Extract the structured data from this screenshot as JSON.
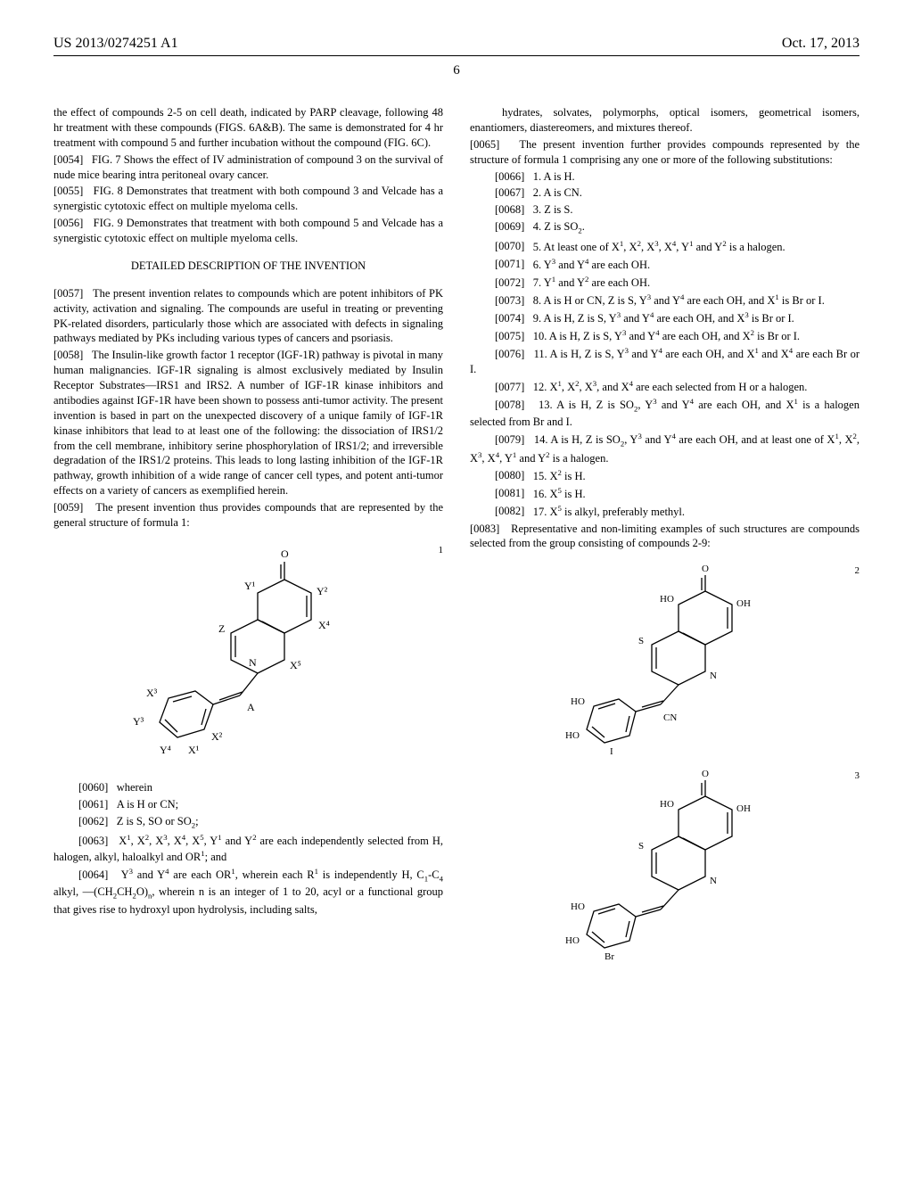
{
  "header": {
    "doc_id": "US 2013/0274251 A1",
    "date": "Oct. 17, 2013",
    "page": "6"
  },
  "left": {
    "p0": "the effect of compounds 2-5 on cell death, indicated by PARP cleavage, following 48 hr treatment with these compounds (FIGS. 6A&B). The same is demonstrated for 4 hr treatment with compound 5 and further incubation without the compound (FIG. 6C).",
    "p0054_n": "[0054]",
    "p0054": "FIG. 7 Shows the effect of IV administration of compound 3 on the survival of nude mice bearing intra peritoneal ovary cancer.",
    "p0055_n": "[0055]",
    "p0055": "FIG. 8 Demonstrates that treatment with both compound 3 and Velcade has a synergistic cytotoxic effect on multiple myeloma cells.",
    "p0056_n": "[0056]",
    "p0056": "FIG. 9 Demonstrates that treatment with both compound 5 and Velcade has a synergistic cytotoxic effect on multiple myeloma cells.",
    "heading": "DETAILED DESCRIPTION OF THE INVENTION",
    "p0057_n": "[0057]",
    "p0057": "The present invention relates to compounds which are potent inhibitors of PK activity, activation and signaling. The compounds are useful in treating or preventing PK-related disorders, particularly those which are associated with defects in signaling pathways mediated by PKs including various types of cancers and psoriasis.",
    "p0058_n": "[0058]",
    "p0058": "The Insulin-like growth factor 1 receptor (IGF-1R) pathway is pivotal in many human malignancies. IGF-1R signaling is almost exclusively mediated by Insulin Receptor Substrates—IRS1 and IRS2. A number of IGF-1R kinase inhibitors and antibodies against IGF-1R have been shown to possess anti-tumor activity. The present invention is based in part on the unexpected discovery of a unique family of IGF-1R kinase inhibitors that lead to at least one of the following: the dissociation of IRS1/2 from the cell membrane, inhibitory serine phosphorylation of IRS1/2; and irreversible degradation of the IRS1/2 proteins. This leads to long lasting inhibition of the IGF-1R pathway, growth inhibition of a wide range of cancer cell types, and potent anti-tumor effects on a variety of cancers as exemplified herein.",
    "p0059_n": "[0059]",
    "p0059": "The present invention thus provides compounds that are represented by the general structure of formula 1:",
    "p0060_n": "[0060]",
    "p0060": "wherein",
    "p0061_n": "[0061]",
    "p0061": "A is H or CN;",
    "p0062_n": "[0062]",
    "f1_label": "1",
    "formula1": {
      "atoms": [
        "O",
        "Y¹",
        "Y²",
        "Z",
        "N",
        "X³",
        "X⁴",
        "X⁵",
        "Y³",
        "Y⁴",
        "A",
        "X¹",
        "X²"
      ],
      "bonds": "aromatic fused tricyclic with styryl substituent",
      "stroke": "#000000",
      "stroke_width": 1.3,
      "font_size": 12
    }
  },
  "right": {
    "p_cont": "hydrates, solvates, polymorphs, optical isomers, geometrical isomers, enantiomers, diastereomers, and mixtures thereof.",
    "p0065_n": "[0065]",
    "p0065": "The present invention further provides compounds represented by the structure of formula 1 comprising any one or more of the following substitutions:",
    "p0066_n": "[0066]",
    "p0066": "1. A is H.",
    "p0067_n": "[0067]",
    "p0067": "2. A is CN.",
    "p0068_n": "[0068]",
    "p0068": "3. Z is S.",
    "p0069_n": "[0069]",
    "p0070_n": "[0070]",
    "p0071_n": "[0071]",
    "p0072_n": "[0072]",
    "p0073_n": "[0073]",
    "p0074_n": "[0074]",
    "p0075_n": "[0075]",
    "p0076_n": "[0076]",
    "p0077_n": "[0077]",
    "p0078_n": "[0078]",
    "p0079_n": "[0079]",
    "p0080_n": "[0080]",
    "p0081_n": "[0081]",
    "p0082_n": "[0082]",
    "p0083_n": "[0083]",
    "p0083": "Representative and non-limiting examples of such structures are compounds selected from the group consisting of compounds 2-9:",
    "f2_label": "2",
    "f3_label": "3",
    "formula23": {
      "labels_f2": [
        "O",
        "HO",
        "OH",
        "S",
        "N",
        "HO",
        "HO",
        "CN",
        "I"
      ],
      "labels_f3": [
        "O",
        "HO",
        "OH",
        "S",
        "N",
        "HO",
        "HO",
        "Br"
      ],
      "stroke": "#000000",
      "stroke_width": 1.3,
      "font_size": 11
    }
  },
  "p0062_html": "Z is S, SO or SO<sub>2</sub>;",
  "p0063_n": "[0063]",
  "p0063_html": "X<sup>1</sup>, X<sup>2</sup>, X<sup>3</sup>, X<sup>4</sup>, X<sup>5</sup>, Y<sup>1</sup> and Y<sup>2</sup> are each independently selected from H, halogen, alkyl, haloalkyl and OR<sup>1</sup>; and",
  "p0064_n": "[0064]",
  "p0064_html": "Y<sup>3</sup> and Y<sup>4</sup> are each OR<sup>1</sup>, wherein each R<sup>1</sup> is independently H, C<sub>1</sub>-C<sub>4</sub> alkyl, —(CH<sub>2</sub>CH<sub>2</sub>O)<sub>n</sub>, wherein n is an integer of 1 to 20, acyl or a functional group that gives rise to hydroxyl upon hydrolysis, including salts,",
  "p0069_html": "4. Z is SO<sub>2</sub>.",
  "p0070_html": "5. At least one of X<sup>1</sup>, X<sup>2</sup>, X<sup>3</sup>, X<sup>4</sup>, Y<sup>1</sup> and Y<sup>2</sup> is a halogen.",
  "p0071_html": "6. Y<sup>3</sup> and Y<sup>4</sup> are each OH.",
  "p0072_html": "7. Y<sup>1</sup> and Y<sup>2</sup> are each OH.",
  "p0073_html": "8. A is H or CN, Z is S, Y<sup>3</sup> and Y<sup>4</sup> are each OH, and X<sup>1</sup> is Br or I.",
  "p0074_html": "9. A is H, Z is S, Y<sup>3</sup> and Y<sup>4</sup> are each OH, and X<sup>3</sup> is Br or I.",
  "p0075_html": "10. A is H, Z is S, Y<sup>3</sup> and Y<sup>4</sup> are each OH, and X<sup>2</sup> is Br or I.",
  "p0076_html": "11. A is H, Z is S, Y<sup>3</sup> and Y<sup>4</sup> are each OH, and X<sup>1</sup> and X<sup>4</sup> are each Br or I.",
  "p0077_html": "12. X<sup>1</sup>, X<sup>2</sup>, X<sup>3</sup>, and X<sup>4</sup> are each selected from H or a halogen.",
  "p0078_html": "13. A is H, Z is SO<sub>2</sub>, Y<sup>3</sup> and Y<sup>4</sup> are each OH, and X<sup>1</sup> is a halogen selected from Br and I.",
  "p0079_html": "14. A is H, Z is SO<sub>2</sub>, Y<sup>3</sup> and Y<sup>4</sup> are each OH, and at least one of X<sup>1</sup>, X<sup>2</sup>, X<sup>3</sup>, X<sup>4</sup>, Y<sup>1</sup> and Y<sup>2</sup> is a halogen.",
  "p0080_html": "15. X<sup>2</sup> is H.",
  "p0081_html": "16. X<sup>5</sup> is H.",
  "p0082_html": "17. X<sup>5</sup> is alkyl, preferably methyl."
}
